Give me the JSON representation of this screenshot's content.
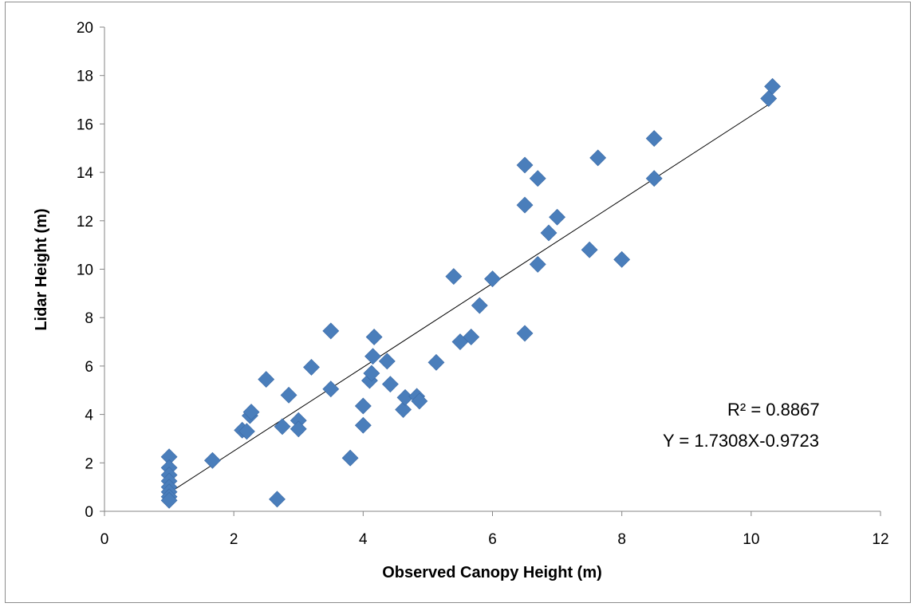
{
  "chart_data": {
    "type": "scatter",
    "xlabel": "Observed Canopy Height (m)",
    "ylabel": "Lidar Height (m)",
    "xlim": [
      0,
      12
    ],
    "ylim": [
      0,
      20
    ],
    "xticks": [
      "0",
      "2",
      "4",
      "6",
      "8",
      "10",
      "12"
    ],
    "yticks": [
      "0",
      "2",
      "4",
      "6",
      "8",
      "10",
      "12",
      "14",
      "16",
      "18",
      "20"
    ],
    "grid": false,
    "marker_color": "#4a7ebb",
    "series": [
      {
        "points": [
          [
            1.0,
            2.25
          ],
          [
            1.0,
            1.8
          ],
          [
            1.0,
            1.5
          ],
          [
            1.0,
            1.25
          ],
          [
            1.0,
            1.0
          ],
          [
            1.0,
            0.8
          ],
          [
            1.0,
            0.6
          ],
          [
            1.0,
            0.45
          ],
          [
            1.67,
            2.1
          ],
          [
            2.13,
            3.35
          ],
          [
            2.2,
            3.3
          ],
          [
            2.25,
            3.95
          ],
          [
            2.27,
            4.1
          ],
          [
            2.5,
            5.45
          ],
          [
            2.67,
            0.5
          ],
          [
            2.75,
            3.5
          ],
          [
            2.85,
            4.8
          ],
          [
            3.0,
            3.75
          ],
          [
            3.0,
            3.4
          ],
          [
            3.2,
            5.95
          ],
          [
            3.5,
            7.45
          ],
          [
            3.5,
            5.05
          ],
          [
            3.8,
            2.2
          ],
          [
            4.0,
            4.35
          ],
          [
            4.0,
            3.55
          ],
          [
            4.1,
            5.4
          ],
          [
            4.13,
            5.7
          ],
          [
            4.15,
            6.4
          ],
          [
            4.17,
            7.2
          ],
          [
            4.37,
            6.2
          ],
          [
            4.42,
            5.25
          ],
          [
            4.62,
            4.2
          ],
          [
            4.65,
            4.7
          ],
          [
            4.83,
            4.75
          ],
          [
            4.87,
            4.55
          ],
          [
            5.13,
            6.15
          ],
          [
            5.4,
            9.7
          ],
          [
            5.5,
            7.0
          ],
          [
            5.67,
            7.2
          ],
          [
            5.8,
            8.5
          ],
          [
            6.0,
            9.6
          ],
          [
            6.5,
            14.3
          ],
          [
            6.5,
            12.65
          ],
          [
            6.5,
            7.35
          ],
          [
            6.7,
            13.75
          ],
          [
            6.7,
            10.2
          ],
          [
            6.87,
            11.5
          ],
          [
            7.0,
            12.15
          ],
          [
            7.5,
            10.8
          ],
          [
            7.63,
            14.6
          ],
          [
            8.0,
            10.4
          ],
          [
            8.5,
            15.4
          ],
          [
            8.5,
            13.75
          ],
          [
            10.27,
            17.05
          ],
          [
            10.33,
            17.55
          ]
        ]
      }
    ],
    "trendline": {
      "slope": 1.7308,
      "intercept": -0.9723,
      "x_range": [
        1.0,
        10.33
      ]
    },
    "annotations": [
      "R² = 0.8867",
      "Y = 1.7308X-0.9723"
    ]
  }
}
